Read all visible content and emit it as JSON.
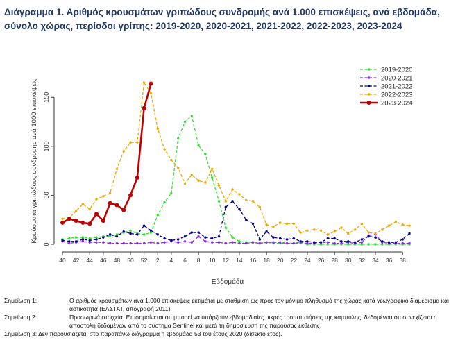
{
  "title": {
    "line1": "Διάγραμμα 1. Αριθμός κρουσμάτων γριπώδους συνδρομής ανά 1.000 επισκέψεις, ανά εβδομάδα,",
    "line2": "σύνολο χώρας, περίοδοι γρίπης: 2019-2020, 2020-2021, 2021-2022, 2022-2023, 2023-2024"
  },
  "notes": [
    {
      "label": "Σημείωση 1:",
      "text": "Ο αριθμός κρουσμάτων ανά 1.000 επισκέψεις εκτιμάται με στάθμιση ως προς τον μόνιμο πληθυσμό της χώρας κατά γεωγραφικό διαμέρισμα και αστικότητα (ΕΛΣΤΑΤ, απογραφή 2011)."
    },
    {
      "label": "Σημείωση 2:",
      "text": "Προσωρινά στοιχεία. Επισημαίνεται ότι μπορεί να υπάρξουν εβδομαδιαίες μικρές τροποποιήσεις της καμπύλης, δεδομένου ότι συνεχίζεται η αποστολή δεδομένων από το σύστημα Sentinel και μετά τη δημοσίευση της παρούσας έκθεσης."
    },
    {
      "label": "Σημείωση 3:",
      "text": "Δεν παρουσιάζεται στο παραπάνω διάγραμμα η εβδομάδα 53 του έτους 2020 (δίσεκτο έτος)."
    }
  ],
  "chart_data": {
    "type": "line",
    "title": "Διάγραμμα 1. Αριθμός κρουσμάτων γριπώδους συνδρομής ανά 1.000 επισκέψεις, ανά εβδομάδα, σύνολο χώρας, περίοδοι γρίπης: 2019-2020, 2020-2021, 2021-2022, 2022-2023, 2023-2024",
    "xlabel": "Εβδομάδα",
    "ylabel": "Κρούσματα γριπώδους συνδρομής ανά 1000 επισκέψεις",
    "x_ticks": [
      "40",
      "42",
      "44",
      "46",
      "48",
      "50",
      "52",
      "2",
      "4",
      "6",
      "8",
      "10",
      "12",
      "14",
      "16",
      "18",
      "20",
      "22",
      "24",
      "26",
      "28",
      "30",
      "32",
      "34",
      "36",
      "38"
    ],
    "y_ticks": [
      0,
      50,
      100,
      150
    ],
    "ylim": [
      0,
      170
    ],
    "legend_position": "top-right",
    "series": [
      {
        "name": "2019-2020",
        "color": "#33dd33",
        "style": "dashed",
        "marker": "circle",
        "values": [
          5,
          6,
          7,
          7,
          6,
          7,
          8,
          8,
          10,
          12,
          14,
          11,
          10,
          12,
          30,
          43,
          52,
          108,
          125,
          131,
          101,
          92,
          68,
          44,
          17,
          7,
          3,
          2,
          2,
          1,
          2,
          1,
          1,
          1,
          1,
          1,
          0,
          0,
          0,
          0,
          0,
          0,
          0,
          0,
          0,
          0,
          0,
          0,
          0,
          0,
          0,
          0
        ]
      },
      {
        "name": "2020-2021",
        "color": "#8a2be2",
        "style": "dashed",
        "marker": "circle",
        "values": [
          3,
          1,
          2,
          3,
          2,
          2,
          2,
          1,
          1,
          1,
          1,
          1,
          1,
          2,
          1,
          2,
          3,
          2,
          3,
          2,
          8,
          3,
          2,
          2,
          1,
          2,
          1,
          1,
          2,
          1,
          2,
          2,
          2,
          1,
          1,
          2,
          1,
          1,
          2,
          2,
          1,
          1,
          2,
          1,
          2,
          9,
          10,
          2,
          1,
          1,
          1,
          1
        ]
      },
      {
        "name": "2021-2022",
        "color": "#000080",
        "style": "dashed",
        "marker": "circle",
        "values": [
          4,
          3,
          3,
          5,
          4,
          5,
          7,
          10,
          8,
          13,
          11,
          10,
          19,
          14,
          10,
          6,
          4,
          5,
          8,
          12,
          12,
          7,
          6,
          8,
          38,
          44,
          36,
          25,
          21,
          5,
          13,
          7,
          6,
          5,
          6,
          3,
          3,
          2,
          2,
          6,
          6,
          3,
          3,
          2,
          5,
          8,
          7,
          3,
          2,
          2,
          5,
          11
        ]
      },
      {
        "name": "2022-2023",
        "color": "#f0a800",
        "style": "dashed",
        "marker": "circle",
        "values": [
          26,
          27,
          34,
          41,
          36,
          46,
          49,
          52,
          77,
          95,
          104,
          104,
          165,
          154,
          118,
          97,
          86,
          78,
          62,
          71,
          65,
          63,
          77,
          60,
          44,
          56,
          51,
          45,
          44,
          38,
          20,
          18,
          22,
          21,
          21,
          12,
          14,
          15,
          14,
          10,
          13,
          17,
          11,
          15,
          21,
          12,
          11,
          15,
          19,
          23,
          20,
          19
        ]
      },
      {
        "name": "2023-2024",
        "color": "#c00000",
        "style": "solid",
        "marker": "circle",
        "values": [
          22,
          26,
          24,
          22,
          21,
          31,
          24,
          42,
          40,
          35,
          50,
          68,
          139,
          164
        ]
      }
    ]
  }
}
